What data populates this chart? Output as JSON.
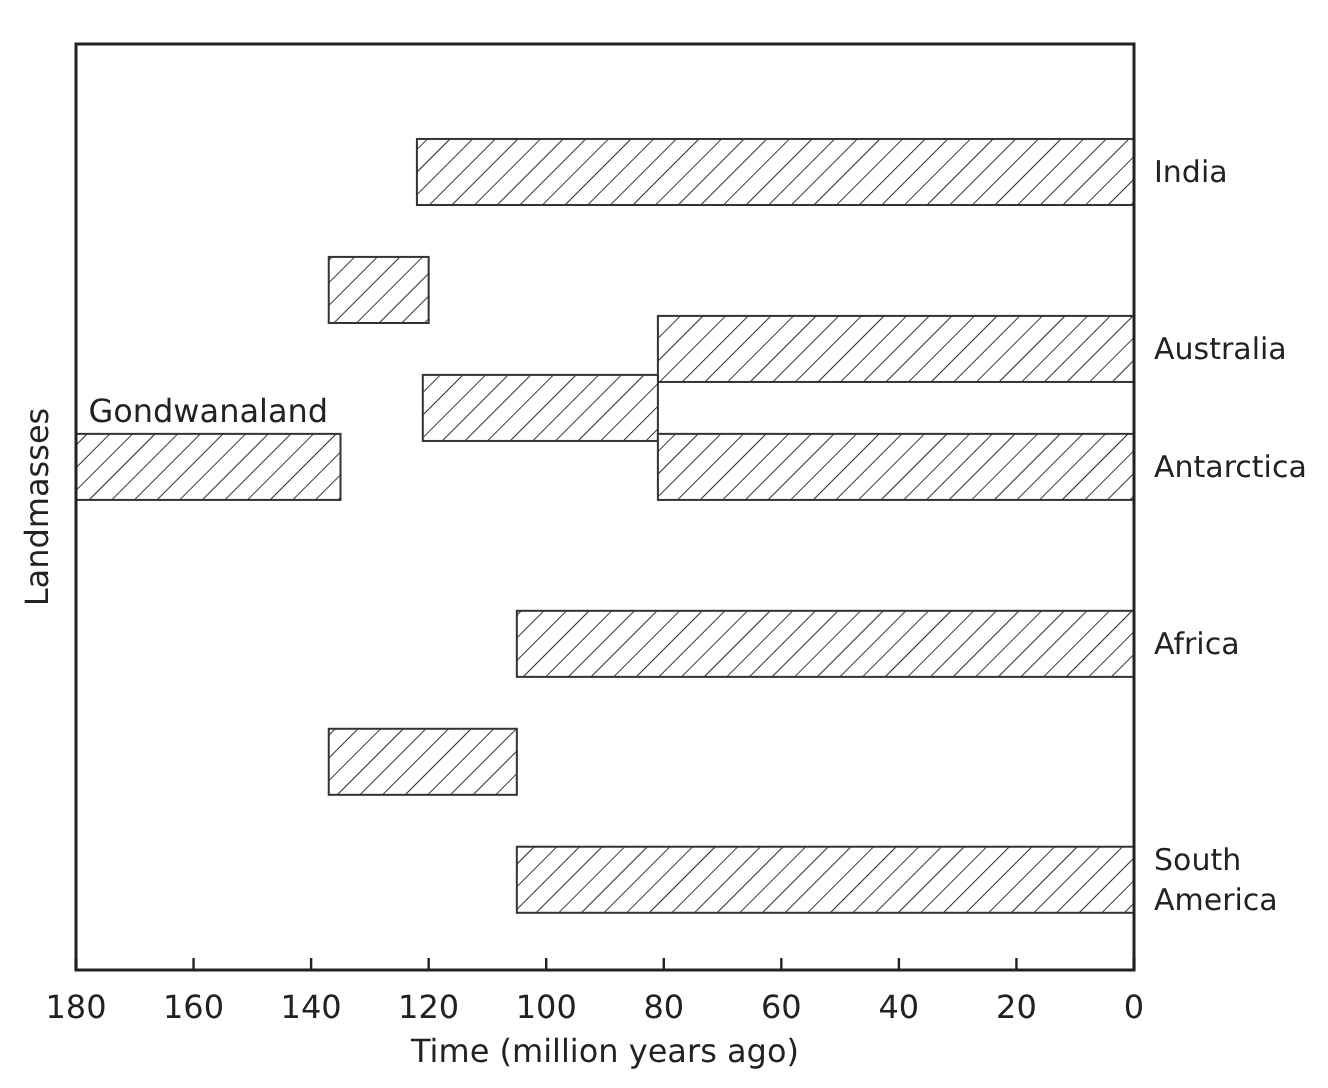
{
  "chart_data": {
    "type": "bar",
    "orientation": "horizontal",
    "xlabel": "Time (million years ago)",
    "ylabel": "Landmasses",
    "categories": [
      "India",
      null,
      null,
      "Australia",
      null,
      "Antarctica",
      null,
      null,
      "Africa",
      null,
      null,
      null,
      "South America"
    ],
    "series": [
      {
        "color": "#333333",
        "values": [
          122,
          null,
          17,
          81,
          40,
          81,
          null,
          null,
          105,
          null,
          32,
          null,
          105
        ],
        "base": [
          0,
          null,
          120,
          0,
          81,
          0,
          null,
          null,
          0,
          null,
          105,
          null,
          0
        ]
      },
      {
        "color": "#333333",
        "values": [
          null,
          null,
          null,
          null,
          null,
          45,
          null,
          null,
          null,
          null,
          null,
          null,
          null
        ],
        "base": [
          null,
          null,
          null,
          null,
          null,
          135,
          null,
          null,
          null,
          null,
          null,
          null,
          null
        ]
      }
    ],
    "annotations": [
      "Gondwanaland"
    ],
    "xlim": [
      180,
      0
    ],
    "xticks": [
      180,
      160,
      140,
      120,
      100,
      80,
      60,
      40,
      20,
      0
    ],
    "grid": false
  }
}
